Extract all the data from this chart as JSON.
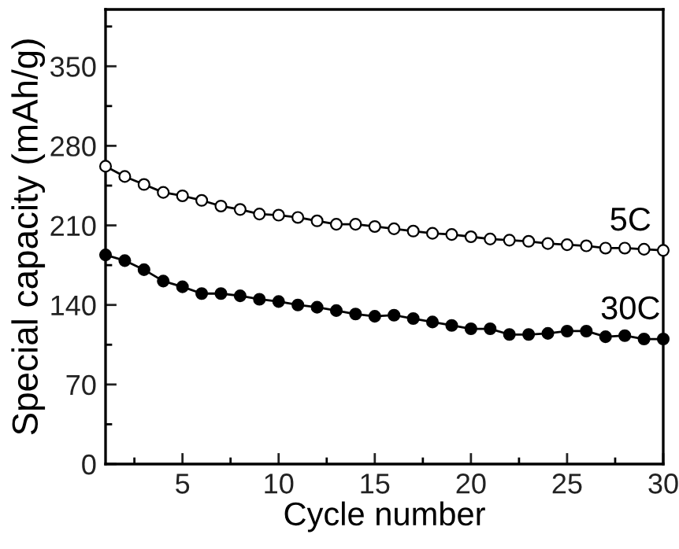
{
  "chart_data": {
    "type": "line",
    "xlabel": "Cycle number",
    "ylabel": "Special capacity (mAh/g)",
    "x": [
      1,
      2,
      3,
      4,
      5,
      6,
      7,
      8,
      9,
      10,
      11,
      12,
      13,
      14,
      15,
      16,
      17,
      18,
      19,
      20,
      21,
      22,
      23,
      24,
      25,
      26,
      27,
      28,
      29,
      30
    ],
    "series": [
      {
        "name": "5C",
        "color": "#000000",
        "values": [
          262,
          253,
          246,
          239,
          236,
          232,
          227,
          224,
          220,
          219,
          217,
          214,
          211,
          211,
          209,
          207,
          205,
          203,
          202,
          200,
          198,
          197,
          196,
          194,
          193,
          192,
          190,
          190,
          189,
          188
        ]
      },
      {
        "name": "30C",
        "color": "#000000",
        "values": [
          184,
          179,
          171,
          161,
          156,
          150,
          150,
          148,
          145,
          143,
          140,
          138,
          135,
          132,
          130,
          131,
          128,
          125,
          122,
          119,
          119,
          114,
          114,
          115,
          117,
          117,
          112,
          113,
          110,
          110
        ]
      }
    ],
    "xlim": [
      1,
      30
    ],
    "ylim": [
      0,
      400
    ],
    "xticks": [
      {
        "value": 2.5,
        "label": null
      },
      5,
      {
        "value": 7.5,
        "label": null
      },
      10,
      {
        "value": 12.5,
        "label": null
      },
      15,
      {
        "value": 17.5,
        "label": null
      },
      20,
      {
        "value": 22.5,
        "label": null
      },
      25,
      {
        "value": 27.5,
        "label": null
      },
      30
    ],
    "yticks": [
      0,
      {
        "value": 35,
        "label": null
      },
      70,
      {
        "value": 105,
        "label": null
      },
      140,
      {
        "value": 175,
        "label": null
      },
      210,
      {
        "value": 245,
        "label": null
      },
      280,
      {
        "value": 315,
        "label": null
      },
      350,
      {
        "value": 385,
        "label": null
      }
    ],
    "grid": false,
    "legend": false,
    "marker": "circle",
    "line_style": "solid"
  }
}
